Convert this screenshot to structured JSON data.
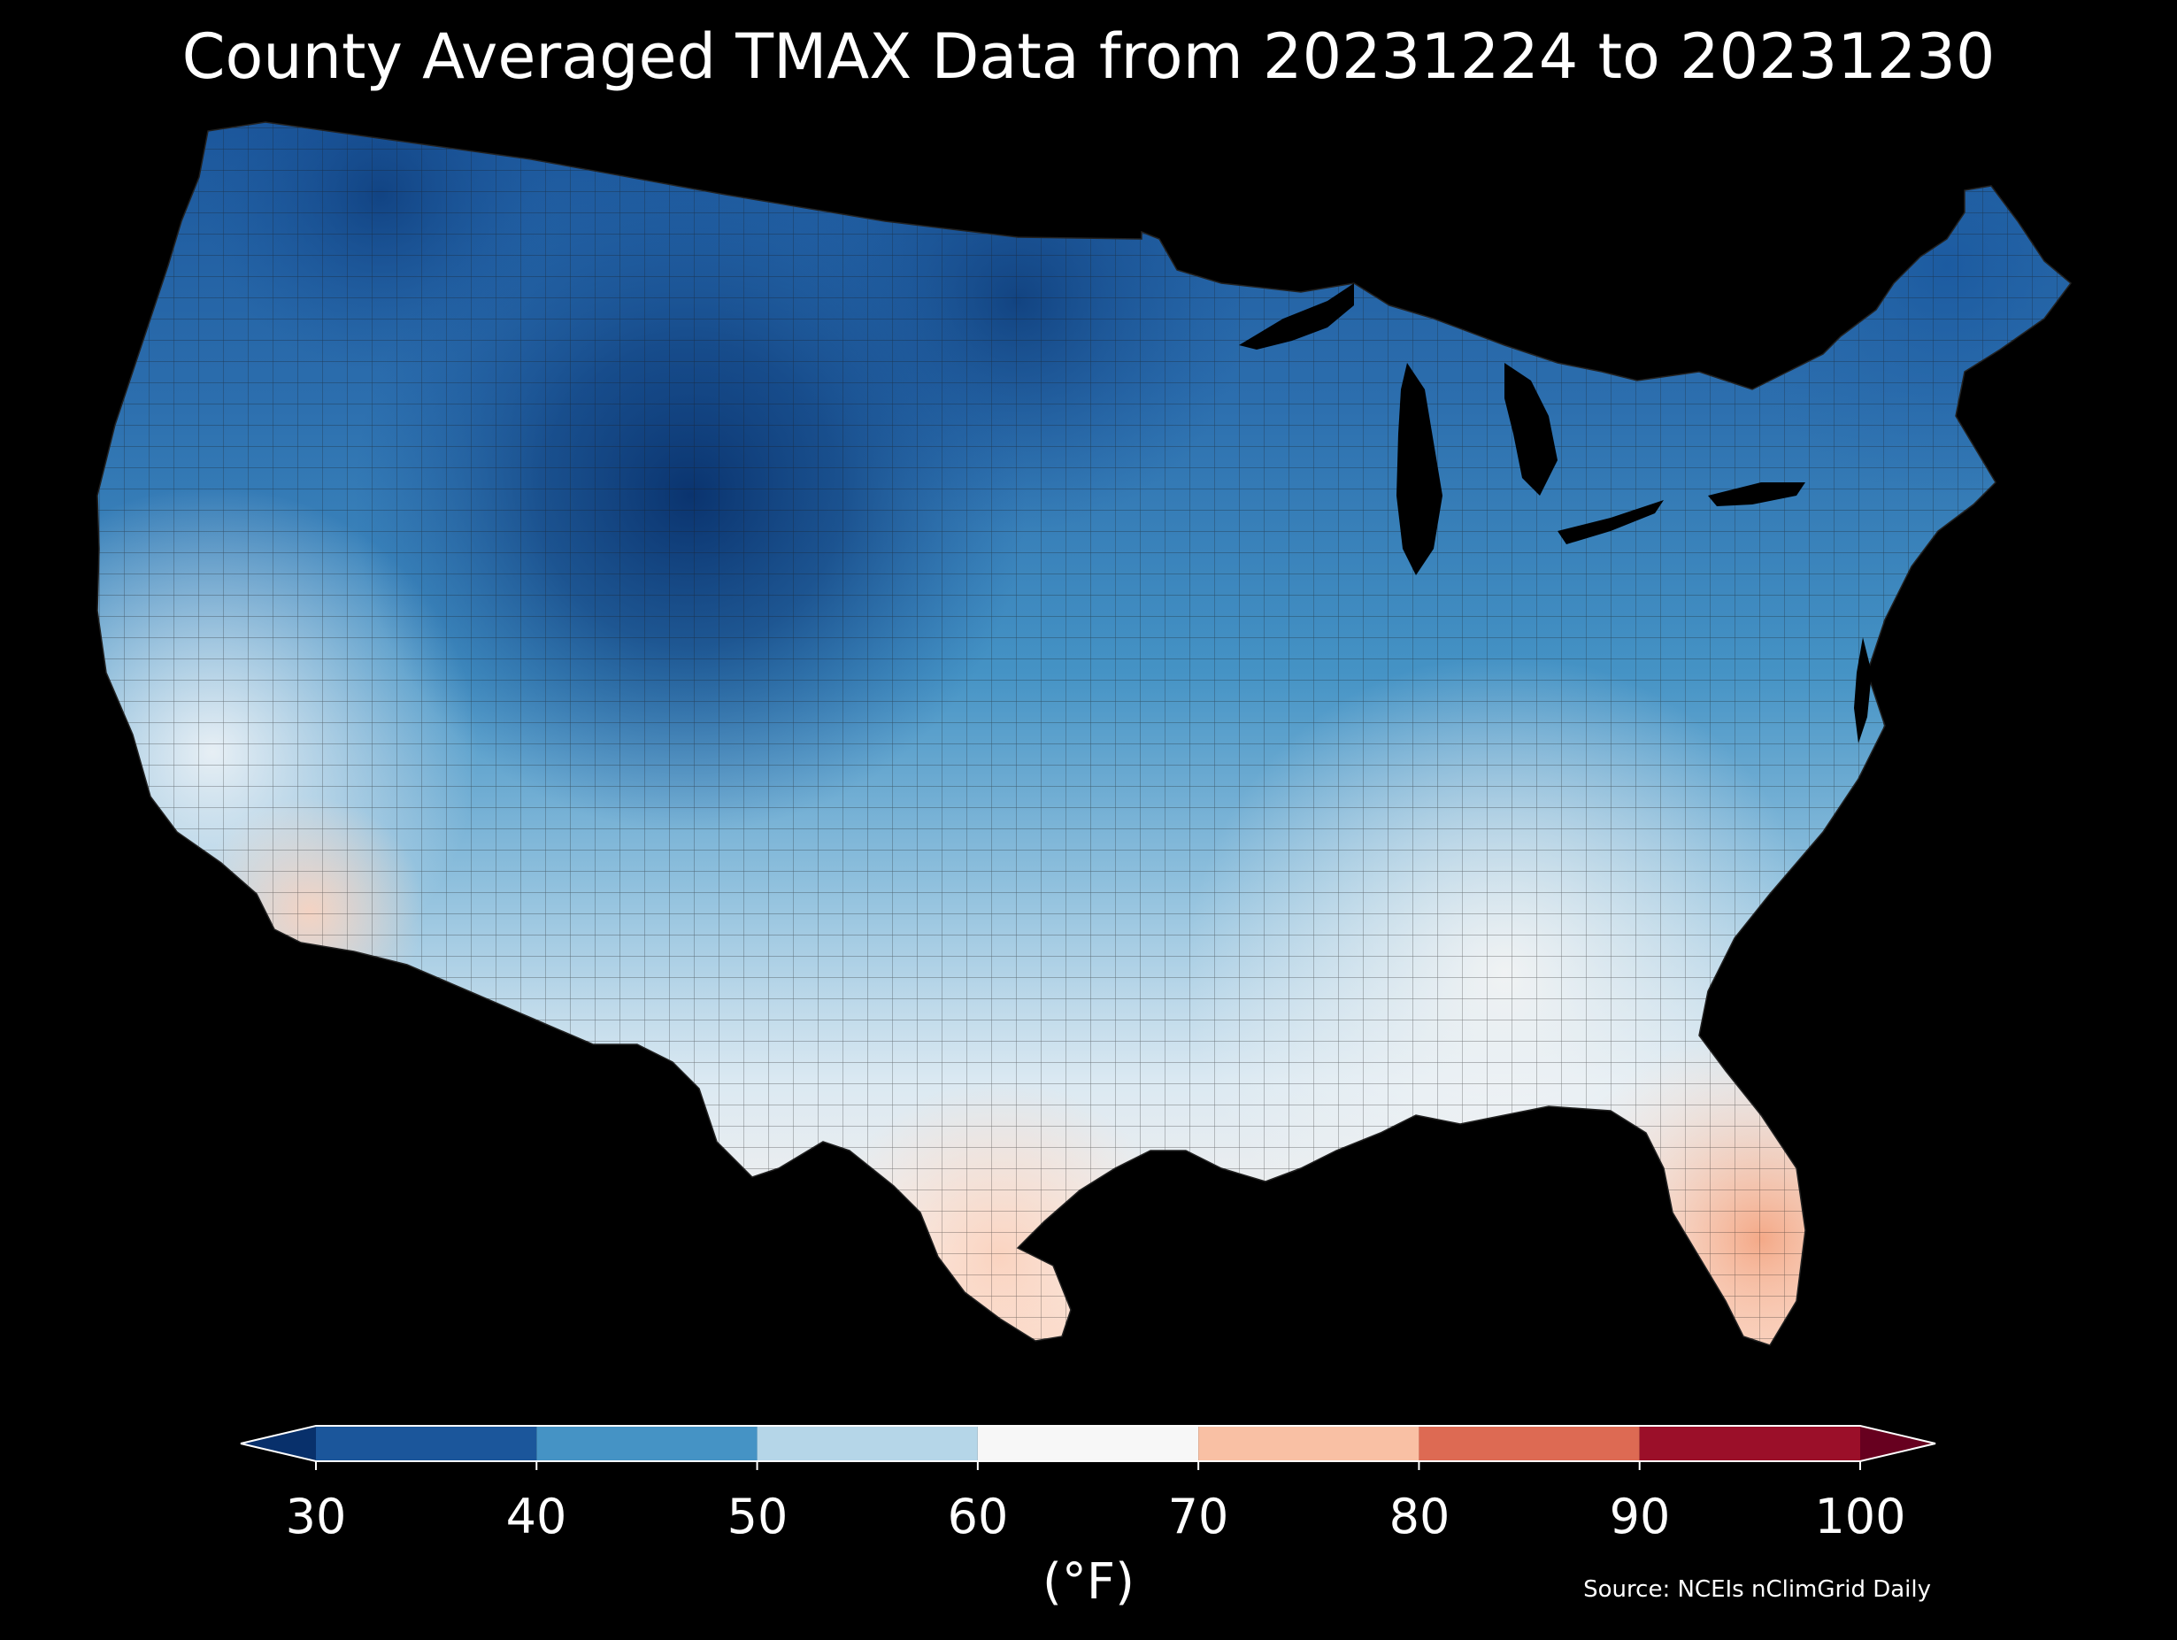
{
  "title": "County Averaged TMAX Data from 20231224 to 20231230",
  "source": "Source: NCEIs nClimGrid Daily",
  "colorbar": {
    "units": "(°F)",
    "ticks": [
      "30",
      "40",
      "50",
      "60",
      "70",
      "80",
      "90",
      "100"
    ],
    "bins": [
      {
        "from": 30,
        "to": 40,
        "color": "#1b569b"
      },
      {
        "from": 40,
        "to": 50,
        "color": "#4593c5"
      },
      {
        "from": 50,
        "to": 60,
        "color": "#b5d6e8"
      },
      {
        "from": 60,
        "to": 70,
        "color": "#f7f7f7"
      },
      {
        "from": 70,
        "to": 80,
        "color": "#f9c0a4"
      },
      {
        "from": 80,
        "to": 90,
        "color": "#dd6a53"
      },
      {
        "from": 90,
        "to": 100,
        "color": "#9b0f29"
      }
    ],
    "extend_min_color": "#08306b",
    "extend_max_color": "#67001f"
  },
  "map": {
    "region": "CONUS",
    "background": "#000000",
    "water_color": "#000000",
    "county_line_color": "#1a1a1a"
  }
}
